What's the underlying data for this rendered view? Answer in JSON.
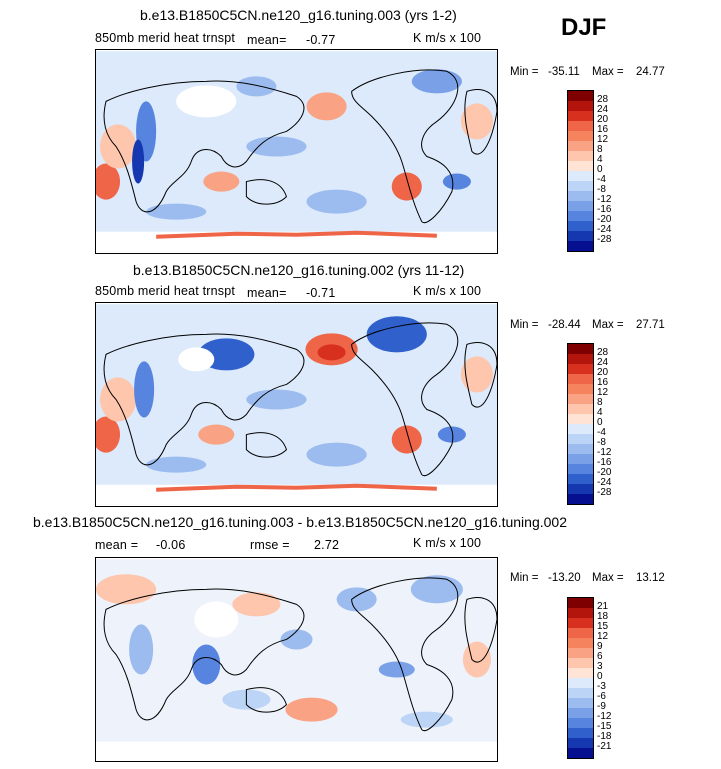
{
  "season": "DJF",
  "panels": [
    {
      "title": "b.e13.B1850C5CN.ne120_g16.tuning.003 (yrs 1-2)",
      "subtitle_left": "850mb merid heat trnspt",
      "mean_label": "mean=",
      "mean_value": "-0.77",
      "units": "K m/s x 100",
      "min_label": "Min =",
      "min_value": "-35.11",
      "max_label": "Max =",
      "max_value": "24.77",
      "colorbar_levels": [
        "28",
        "24",
        "20",
        "16",
        "12",
        "8",
        "4",
        "0",
        "-4",
        "-8",
        "-12",
        "-16",
        "-20",
        "-24",
        "-28"
      ]
    },
    {
      "title": "b.e13.B1850C5CN.ne120_g16.tuning.002 (yrs 11-12)",
      "subtitle_left": "850mb merid heat trnspt",
      "mean_label": "mean=",
      "mean_value": "-0.71",
      "units": "K m/s x 100",
      "min_label": "Min =",
      "min_value": "-28.44",
      "max_label": "Max =",
      "max_value": "27.71",
      "colorbar_levels": [
        "28",
        "24",
        "20",
        "16",
        "12",
        "8",
        "4",
        "0",
        "-4",
        "-8",
        "-12",
        "-16",
        "-20",
        "-24",
        "-28"
      ]
    },
    {
      "title": "b.e13.B1850C5CN.ne120_g16.tuning.003 - b.e13.B1850C5CN.ne120_g16.tuning.002",
      "mean_label": "mean =",
      "mean_value": "-0.06",
      "rmse_label": "rmse =",
      "rmse_value": "2.72",
      "units": "K m/s x 100",
      "min_label": "Min =",
      "min_value": "-13.20",
      "max_label": "Max =",
      "max_value": "13.12",
      "colorbar_levels": [
        "21",
        "18",
        "15",
        "12",
        "9",
        "6",
        "3",
        "0",
        "-3",
        "-6",
        "-9",
        "-12",
        "-15",
        "-18",
        "-21"
      ]
    }
  ],
  "colors": {
    "scale": [
      "#7f0000",
      "#b3150c",
      "#d7301f",
      "#ef6548",
      "#f4835e",
      "#f9a384",
      "#fdc6ad",
      "#ffe4d6",
      "#dceafb",
      "#bcd4f6",
      "#9cbcf0",
      "#7aa1e8",
      "#5684de",
      "#2f60cc",
      "#1537b0",
      "#050f8f"
    ]
  },
  "chart_data": [
    {
      "type": "heatmap",
      "title": "b.e13.B1850C5CN.ne120_g16.tuning.003 (yrs 1-2)",
      "variable": "850mb merid heat trnspt",
      "units": "K m/s x 100",
      "mean": -0.77,
      "min": -35.11,
      "max": 24.77,
      "levels": [
        -28,
        -24,
        -20,
        -16,
        -12,
        -8,
        -4,
        0,
        4,
        8,
        12,
        16,
        20,
        24,
        28
      ],
      "features": [
        {
          "lon": 20,
          "lat": -20,
          "value": 16
        },
        {
          "lon": 60,
          "lat": 15,
          "value": -20
        },
        {
          "lon": 150,
          "lat": 35,
          "value": 12
        },
        {
          "lon": 200,
          "lat": 45,
          "value": 16
        },
        {
          "lon": 285,
          "lat": -25,
          "value": 16
        },
        {
          "lon": 300,
          "lat": 50,
          "value": -16
        },
        {
          "lon": 95,
          "lat": 40,
          "value": -8
        }
      ]
    },
    {
      "type": "heatmap",
      "title": "b.e13.B1850C5CN.ne120_g16.tuning.002 (yrs 11-12)",
      "variable": "850mb merid heat trnspt",
      "units": "K m/s x 100",
      "mean": -0.71,
      "min": -28.44,
      "max": 27.71,
      "levels": [
        -28,
        -24,
        -20,
        -16,
        -12,
        -8,
        -4,
        0,
        4,
        8,
        12,
        16,
        20,
        24,
        28
      ],
      "features": [
        {
          "lon": 20,
          "lat": -20,
          "value": 16
        },
        {
          "lon": 60,
          "lat": 15,
          "value": -16
        },
        {
          "lon": 110,
          "lat": 40,
          "value": -16
        },
        {
          "lon": 200,
          "lat": 45,
          "value": 20
        },
        {
          "lon": 285,
          "lat": -25,
          "value": 16
        },
        {
          "lon": 290,
          "lat": 55,
          "value": -20
        }
      ]
    },
    {
      "type": "heatmap",
      "title": "b.e13.B1850C5CN.ne120_g16.tuning.003 - b.e13.B1850C5CN.ne120_g16.tuning.002",
      "units": "K m/s x 100",
      "mean": -0.06,
      "rmse": 2.72,
      "min": -13.2,
      "max": 13.12,
      "levels": [
        -21,
        -18,
        -15,
        -12,
        -9,
        -6,
        -3,
        0,
        3,
        6,
        9,
        12,
        15,
        18,
        21
      ],
      "features": [
        {
          "lon": 110,
          "lat": 0,
          "value": -12
        },
        {
          "lon": 210,
          "lat": -40,
          "value": 9
        },
        {
          "lon": 160,
          "lat": 45,
          "value": 6
        },
        {
          "lon": 300,
          "lat": 50,
          "value": -9
        },
        {
          "lon": 250,
          "lat": 20,
          "value": -6
        }
      ]
    }
  ]
}
